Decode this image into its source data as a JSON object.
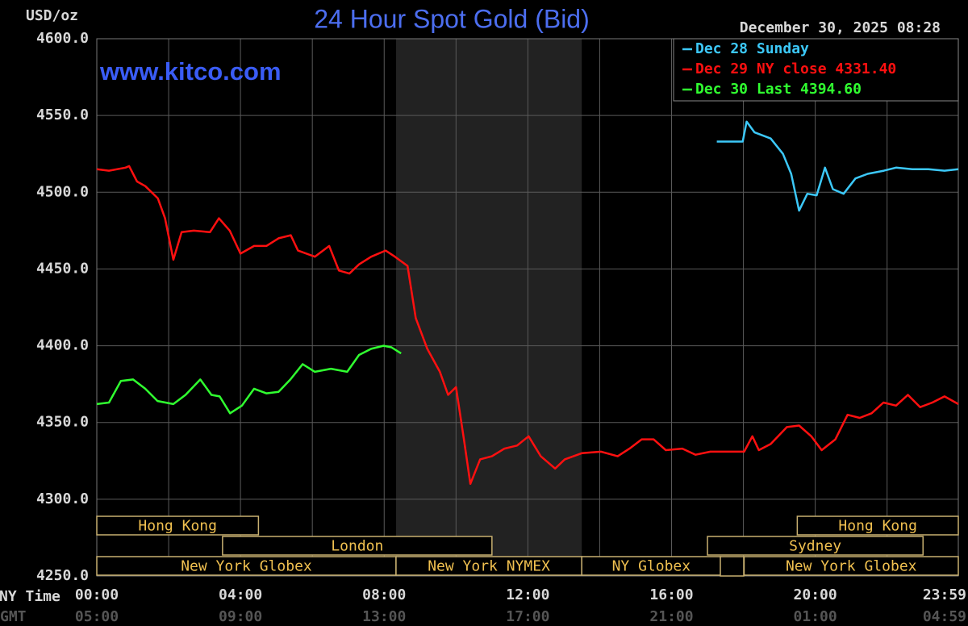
{
  "chart_data": {
    "type": "line",
    "title": "24 Hour Spot Gold (Bid)",
    "y_label": "USD/oz",
    "watermark": "www.kitco.com",
    "timestamp": "December 30, 2025 08:28",
    "x_row_labels": [
      "NY Time",
      "GMT"
    ],
    "xlim": [
      0,
      23.983
    ],
    "xticks": [
      {
        "value": 0,
        "label": "00:00",
        "gmt": "05:00"
      },
      {
        "value": 4,
        "label": "04:00",
        "gmt": "09:00"
      },
      {
        "value": 8,
        "label": "08:00",
        "gmt": "13:00"
      },
      {
        "value": 12,
        "label": "12:00",
        "gmt": "17:00"
      },
      {
        "value": 16,
        "label": "16:00",
        "gmt": "21:00"
      },
      {
        "value": 20,
        "label": "20:00",
        "gmt": "01:00"
      },
      {
        "value": 23.983,
        "label": "23:59",
        "gmt": "04:59"
      }
    ],
    "xminor": [
      2,
      6,
      10,
      14,
      18,
      22
    ],
    "ylim": [
      4250,
      4600
    ],
    "yticks": [
      {
        "value": 4250,
        "label": "4250.0"
      },
      {
        "value": 4300,
        "label": "4300.0"
      },
      {
        "value": 4350,
        "label": "4350.0"
      },
      {
        "value": 4400,
        "label": "4400.0"
      },
      {
        "value": 4450,
        "label": "4450.0"
      },
      {
        "value": 4500,
        "label": "4500.0"
      },
      {
        "value": 4550,
        "label": "4550.0"
      },
      {
        "value": 4600,
        "label": "4600.0"
      }
    ],
    "grid": true,
    "shaded": [
      8.33,
      13.5
    ],
    "sessions": [
      {
        "name": "Hong Kong",
        "start": 0,
        "end": 4.5,
        "row": 0
      },
      {
        "name": "Hong Kong",
        "start": 19.5,
        "end": 23.983,
        "row": 0
      },
      {
        "name": "London",
        "start": 3.5,
        "end": 11,
        "row": 1
      },
      {
        "name": "Sydney",
        "start": 17,
        "end": 23,
        "row": 1
      },
      {
        "name": "New York Globex",
        "start": 0,
        "end": 8.33,
        "row": 2
      },
      {
        "name": "New York NYMEX",
        "start": 8.33,
        "end": 13.5,
        "row": 2
      },
      {
        "name": "NY Globex",
        "start": 13.5,
        "end": 17.37,
        "row": 2
      },
      {
        "name": "New York Globex",
        "start": 18.02,
        "end": 23.983,
        "row": 2
      }
    ],
    "series": [
      {
        "name": "Dec 28 Sunday",
        "color": "#3cc8f8",
        "x": [
          17.26,
          17.98,
          18.09,
          18.31,
          18.76,
          19.1,
          19.33,
          19.55,
          19.78,
          20.04,
          20.27,
          20.49,
          20.79,
          21.12,
          21.46,
          21.91,
          22.25,
          22.7,
          23.15,
          23.6,
          23.983
        ],
        "values": [
          4533,
          4533,
          4546,
          4539,
          4535,
          4525,
          4512,
          4488,
          4499,
          4498,
          4516,
          4502,
          4499,
          4509,
          4512,
          4514,
          4516,
          4515,
          4515,
          4514,
          4515
        ]
      },
      {
        "name": "Dec 29 NY close 4331.40",
        "color": "#ff1010",
        "x": [
          0,
          0.34,
          0.8,
          0.9,
          1.12,
          1.35,
          1.7,
          1.9,
          2.13,
          2.36,
          2.7,
          3.15,
          3.4,
          3.7,
          4.0,
          4.38,
          4.72,
          5.06,
          5.4,
          5.6,
          6.07,
          6.47,
          6.74,
          7.03,
          7.3,
          7.64,
          8.04,
          8.3,
          8.65,
          8.88,
          9.2,
          9.55,
          9.78,
          10.0,
          10.22,
          10.4,
          10.67,
          11.0,
          11.35,
          11.7,
          12.02,
          12.36,
          12.76,
          13.03,
          13.5,
          14.04,
          14.5,
          14.83,
          15.17,
          15.5,
          15.84,
          16.3,
          16.67,
          17.08,
          17.53,
          18.02,
          18.25,
          18.43,
          18.76,
          19.21,
          19.55,
          19.89,
          20.18,
          20.56,
          20.9,
          21.24,
          21.57,
          21.9,
          22.25,
          22.58,
          22.92,
          23.26,
          23.6,
          23.983
        ],
        "values": [
          4515,
          4514,
          4516,
          4517,
          4507,
          4504,
          4496,
          4483,
          4456,
          4474,
          4475,
          4474,
          4483,
          4475,
          4460,
          4465,
          4465,
          4470,
          4472,
          4462,
          4458,
          4465,
          4449,
          4447,
          4453,
          4458,
          4462,
          4458,
          4452,
          4418,
          4398,
          4383,
          4368,
          4373,
          4339,
          4310,
          4326,
          4328,
          4333,
          4335,
          4341,
          4328,
          4320,
          4326,
          4330,
          4331,
          4328,
          4333,
          4339,
          4339,
          4332,
          4333,
          4329,
          4331,
          4331,
          4331,
          4341,
          4332,
          4336,
          4347,
          4348,
          4341,
          4332,
          4339,
          4355,
          4353,
          4356,
          4363,
          4361,
          4368,
          4360,
          4363,
          4367,
          4362
        ]
      },
      {
        "name": "Dec 30 Last 4394.60",
        "color": "#30ff30",
        "x": [
          0,
          0.34,
          0.67,
          1.01,
          1.35,
          1.69,
          2.13,
          2.47,
          2.88,
          3.19,
          3.42,
          3.71,
          4.04,
          4.38,
          4.72,
          5.06,
          5.39,
          5.73,
          6.07,
          6.52,
          6.97,
          7.3,
          7.64,
          7.98,
          8.2,
          8.47
        ],
        "values": [
          4362,
          4363,
          4377,
          4378,
          4372,
          4364,
          4362,
          4368,
          4378,
          4368,
          4367,
          4356,
          4361,
          4372,
          4369,
          4370,
          4378,
          4388,
          4383,
          4385,
          4383,
          4394,
          4398,
          4400,
          4399,
          4395
        ]
      }
    ]
  }
}
